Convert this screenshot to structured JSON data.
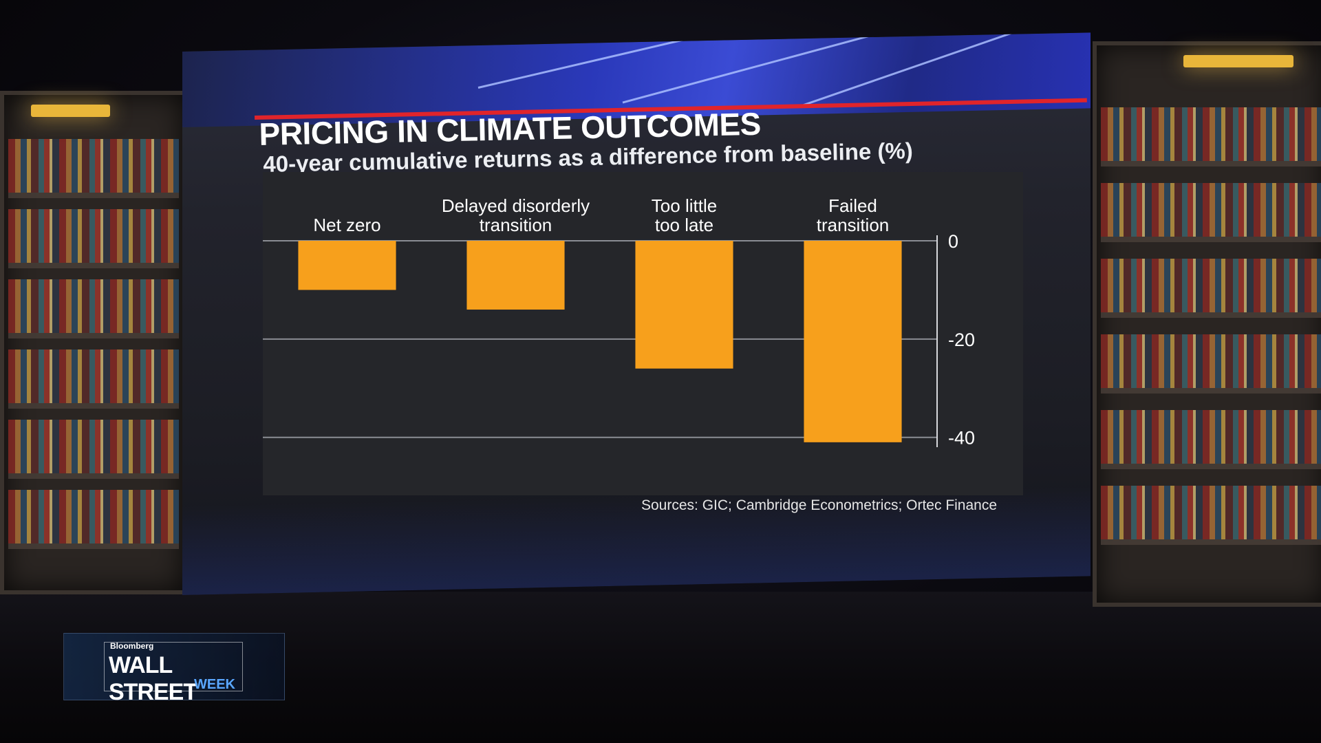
{
  "chart_data": {
    "type": "bar",
    "title": "PRICING IN CLIMATE OUTCOMES",
    "subtitle": "40-year cumulative returns as a difference from baseline (%)",
    "categories": [
      [
        "Net zero"
      ],
      [
        "Delayed disorderly",
        "transition"
      ],
      [
        "Too little",
        "too late"
      ],
      [
        "Failed",
        "transition"
      ]
    ],
    "values": [
      -10,
      -14,
      -26,
      -41
    ],
    "yticks": [
      "0",
      "-20",
      "-40"
    ],
    "ylim": [
      -42,
      0
    ],
    "y_axis_side": "right",
    "grid": true,
    "bar_color": "#f7a01c",
    "source": "Sources: GIC; Cambridge Econometrics; Ortec Finance"
  },
  "branding": {
    "company": "Bloomberg",
    "show": "WALL STREET",
    "show_sub": "WEEK"
  },
  "colors": {
    "accent_red": "#e0242b",
    "screen_blue": "#3d4fe6",
    "logo_blue": "#5aa7ff"
  }
}
